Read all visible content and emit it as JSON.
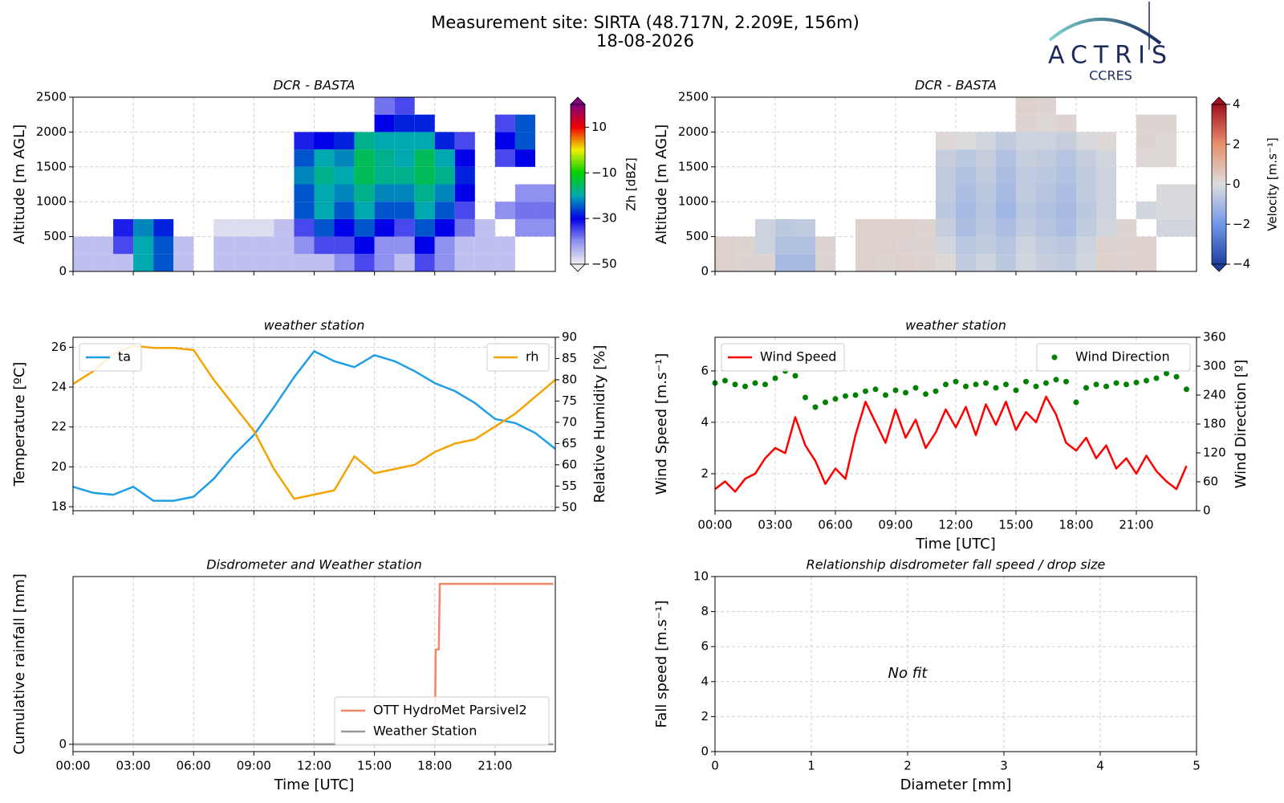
{
  "header": {
    "title": "Measurement site: SIRTA (48.717N, 2.209E, 156m)",
    "date": "18-08-2026"
  },
  "logo": {
    "name": "ACTRIS",
    "subtitle": "CCRES"
  },
  "chart_data": [
    {
      "type": "heatmap",
      "title": "DCR - BASTA",
      "ylabel": "Altitude [m AGL]",
      "x_bins": [
        0,
        1,
        2,
        3,
        4,
        5,
        6,
        7,
        8,
        9,
        10,
        11,
        12,
        13,
        14,
        15,
        16,
        17,
        18,
        19,
        20,
        21,
        22,
        23,
        24
      ],
      "y_bins": [
        0,
        250,
        500,
        750,
        1000,
        1250,
        1500,
        1750,
        2000,
        2250,
        2500
      ],
      "values": [
        [
          -45,
          -45,
          -45,
          -20,
          -25,
          -45,
          null,
          -45,
          -45,
          -45,
          -45,
          -45,
          -45,
          -40,
          -35,
          -40,
          -45,
          -35,
          -40,
          -45,
          -45,
          -45,
          null,
          null
        ],
        [
          -45,
          -45,
          -35,
          -20,
          -25,
          -45,
          null,
          -45,
          -45,
          -45,
          -45,
          -40,
          -35,
          -35,
          -30,
          -40,
          -40,
          -30,
          -40,
          -45,
          -45,
          -45,
          null,
          null
        ],
        [
          null,
          null,
          -32,
          -22,
          -28,
          null,
          null,
          -48,
          -48,
          -48,
          -45,
          -35,
          -25,
          -30,
          -25,
          -30,
          -35,
          -25,
          -30,
          -38,
          -45,
          null,
          -40,
          -40
        ],
        [
          null,
          null,
          null,
          null,
          null,
          null,
          null,
          null,
          null,
          null,
          null,
          -25,
          -20,
          -25,
          -20,
          -25,
          -25,
          -20,
          -25,
          -35,
          null,
          -40,
          -38,
          -38
        ],
        [
          null,
          null,
          null,
          null,
          null,
          null,
          null,
          null,
          null,
          null,
          null,
          -25,
          -20,
          -22,
          -18,
          -22,
          -22,
          -18,
          -22,
          -30,
          null,
          null,
          -40,
          -40
        ],
        [
          null,
          null,
          null,
          null,
          null,
          null,
          null,
          null,
          null,
          null,
          null,
          -22,
          -18,
          -20,
          -15,
          -18,
          -18,
          -15,
          -18,
          -28,
          null,
          null,
          null,
          null
        ],
        [
          null,
          null,
          null,
          null,
          null,
          null,
          null,
          null,
          null,
          null,
          null,
          -25,
          -20,
          -22,
          -15,
          -18,
          -20,
          -15,
          -20,
          -30,
          null,
          -35,
          -30,
          null
        ],
        [
          null,
          null,
          null,
          null,
          null,
          null,
          null,
          null,
          null,
          null,
          null,
          -32,
          -30,
          -28,
          -18,
          -20,
          -20,
          -20,
          -28,
          -35,
          null,
          -30,
          -25,
          null
        ],
        [
          null,
          null,
          null,
          null,
          null,
          null,
          null,
          null,
          null,
          null,
          null,
          null,
          null,
          null,
          null,
          -30,
          -28,
          -28,
          null,
          null,
          null,
          -35,
          -25,
          null
        ],
        [
          null,
          null,
          null,
          null,
          null,
          null,
          null,
          null,
          null,
          null,
          null,
          null,
          null,
          null,
          null,
          -38,
          -35,
          null,
          null,
          null,
          null,
          null,
          null,
          null
        ]
      ],
      "xlim": [
        0,
        24
      ],
      "xticks": [
        0,
        3,
        6,
        9,
        12,
        15,
        18,
        21
      ],
      "xtick_labels": false,
      "ylim": [
        0,
        2500
      ],
      "yticks": [
        0,
        500,
        1000,
        1500,
        2000,
        2500
      ],
      "grid": true,
      "colorbar": {
        "label": "Zh [dBZ]",
        "lim": [
          -50,
          20
        ],
        "ticks": [
          {
            "value": -50,
            "label": "−50"
          },
          {
            "value": -30,
            "label": "−30"
          },
          {
            "value": -10,
            "label": "−10"
          },
          10
        ],
        "colors": [
          "#f0f0f0",
          "#9090f0",
          "#0000e8",
          "#00a8b0",
          "#00d000",
          "#f0f000",
          "#f00000",
          "#800080"
        ]
      }
    },
    {
      "type": "heatmap",
      "title": "DCR - BASTA",
      "ylabel": "Altitude [m AGL]",
      "x_bins": [
        0,
        1,
        2,
        3,
        4,
        5,
        6,
        7,
        8,
        9,
        10,
        11,
        12,
        13,
        14,
        15,
        16,
        17,
        18,
        19,
        20,
        21,
        22,
        23,
        24
      ],
      "y_bins": [
        0,
        250,
        500,
        750,
        1000,
        1250,
        1500,
        1750,
        2000,
        2250,
        2500
      ],
      "values": [
        [
          0.3,
          0.2,
          0.2,
          -1,
          -1,
          0.2,
          null,
          0.3,
          0.2,
          0.3,
          0.2,
          0.1,
          -0.5,
          -0.3,
          -0.6,
          -0.2,
          -0.4,
          -0.5,
          -0.2,
          0.3,
          0.2,
          0.3,
          null,
          null
        ],
        [
          0.3,
          0.2,
          -0.3,
          -0.8,
          -0.8,
          0.2,
          null,
          0.3,
          0.3,
          0.2,
          0.2,
          -0.2,
          -0.6,
          -0.5,
          -0.7,
          -0.3,
          -0.5,
          -0.6,
          -0.3,
          0.2,
          0.2,
          0.3,
          null,
          null
        ],
        [
          null,
          null,
          -0.3,
          -0.6,
          -0.5,
          null,
          null,
          0.3,
          0.3,
          0.3,
          0.2,
          -0.4,
          -0.9,
          -0.6,
          -0.9,
          -0.5,
          -0.7,
          -0.9,
          -0.5,
          -0.2,
          0.2,
          null,
          -0.2,
          -0.2
        ],
        [
          null,
          null,
          null,
          null,
          null,
          null,
          null,
          null,
          null,
          null,
          null,
          -0.6,
          -1.0,
          -0.7,
          -1.1,
          -0.6,
          -0.8,
          -1.0,
          -0.6,
          -0.3,
          null,
          -0.2,
          -0.1,
          -0.1
        ],
        [
          null,
          null,
          null,
          null,
          null,
          null,
          null,
          null,
          null,
          null,
          null,
          -0.5,
          -0.9,
          -0.6,
          -1.0,
          -0.5,
          -0.7,
          -0.9,
          -0.5,
          -0.3,
          null,
          null,
          -0.1,
          -0.1
        ],
        [
          null,
          null,
          null,
          null,
          null,
          null,
          null,
          null,
          null,
          null,
          null,
          -0.5,
          -0.8,
          -0.5,
          -0.9,
          -0.5,
          -0.6,
          -0.8,
          -0.5,
          -0.3,
          null,
          null,
          null,
          null
        ],
        [
          null,
          null,
          null,
          null,
          null,
          null,
          null,
          null,
          null,
          null,
          null,
          -0.4,
          -0.6,
          -0.4,
          -0.8,
          -0.4,
          -0.5,
          -0.7,
          -0.4,
          -0.2,
          null,
          0.1,
          0.1,
          null
        ],
        [
          null,
          null,
          null,
          null,
          null,
          null,
          null,
          null,
          null,
          null,
          null,
          0.1,
          0,
          -0.2,
          -0.5,
          -0.3,
          -0.3,
          -0.4,
          -0.1,
          0.1,
          null,
          0.2,
          0.1,
          null
        ],
        [
          null,
          null,
          null,
          null,
          null,
          null,
          null,
          null,
          null,
          null,
          null,
          null,
          null,
          null,
          null,
          0.2,
          0.1,
          0.2,
          null,
          null,
          null,
          0.2,
          0.2,
          null
        ],
        [
          null,
          null,
          null,
          null,
          null,
          null,
          null,
          null,
          null,
          null,
          null,
          null,
          null,
          null,
          null,
          0.3,
          0.2,
          null,
          null,
          null,
          null,
          null,
          null,
          null
        ]
      ],
      "xlim": [
        0,
        24
      ],
      "xticks": [
        0,
        3,
        6,
        9,
        12,
        15,
        18,
        21
      ],
      "xtick_labels": false,
      "ylim": [
        0,
        2500
      ],
      "yticks": [
        0,
        500,
        1000,
        1500,
        2000,
        2500
      ],
      "grid": true,
      "colorbar": {
        "label": "Velocity [m.s⁻¹]",
        "lim": [
          -4,
          4
        ],
        "ticks": [
          {
            "value": -4,
            "label": "−4"
          },
          {
            "value": -2,
            "label": "−2"
          },
          0,
          2,
          4
        ],
        "colors": [
          "#2040a0",
          "#7098e8",
          "#dcdcdc",
          "#e8906c",
          "#a01020"
        ]
      }
    },
    {
      "type": "line",
      "title": "weather station",
      "ylabel": "Temperature [ºC]",
      "y2label": "Relative Humidity [%]",
      "x": [
        0,
        1,
        2,
        3,
        4,
        5,
        6,
        7,
        8,
        9,
        10,
        11,
        12,
        13,
        14,
        15,
        16,
        17,
        18,
        19,
        20,
        21,
        22,
        23,
        24
      ],
      "series": [
        {
          "name": "ta",
          "color": "#1f9ee8",
          "legend": "upper left",
          "values": [
            19.0,
            18.7,
            18.6,
            19.0,
            18.3,
            18.3,
            18.5,
            19.4,
            20.6,
            21.6,
            23.0,
            24.5,
            25.8,
            25.3,
            25.0,
            25.6,
            25.3,
            24.8,
            24.2,
            23.8,
            23.2,
            22.4,
            22.2,
            21.7,
            20.9
          ]
        },
        {
          "name": "rh",
          "color": "#f5a300",
          "legend": "upper right",
          "axis": "y2",
          "values": [
            79,
            82,
            86,
            88,
            87.5,
            87.5,
            87,
            80,
            74,
            68,
            59,
            52,
            53,
            54,
            62,
            58,
            59,
            60,
            63,
            65,
            66,
            69,
            72,
            76,
            80
          ]
        }
      ],
      "xlim": [
        0,
        24
      ],
      "xticks": [
        0,
        3,
        6,
        9,
        12,
        15,
        18,
        21
      ],
      "xtick_labels": false,
      "ylim": [
        17.8,
        26.5
      ],
      "yticks": [
        18,
        20,
        22,
        24,
        26
      ],
      "y2lim": [
        49.2,
        90
      ],
      "y2ticks": [
        50,
        55,
        60,
        65,
        70,
        75,
        80,
        85,
        90
      ],
      "grid": true
    },
    {
      "type": "line",
      "title": "weather station",
      "ylabel": "Wind Speed [m.s⁻¹]",
      "y2label": "Wind Direction [º]",
      "xlabel": "Time [UTC]",
      "x": [
        0,
        0.5,
        1,
        1.5,
        2,
        2.5,
        3,
        3.5,
        4,
        4.5,
        5,
        5.5,
        6,
        6.5,
        7,
        7.5,
        8,
        8.5,
        9,
        9.5,
        10,
        10.5,
        11,
        11.5,
        12,
        12.5,
        13,
        13.5,
        14,
        14.5,
        15,
        15.5,
        16,
        16.5,
        17,
        17.5,
        18,
        18.5,
        19,
        19.5,
        20,
        20.5,
        21,
        21.5,
        22,
        22.5,
        23,
        23.5
      ],
      "series": [
        {
          "name": "Wind Speed",
          "color": "#ff0000",
          "legend": "upper left",
          "values": [
            1.4,
            1.7,
            1.3,
            1.8,
            2.0,
            2.6,
            3.0,
            2.8,
            4.2,
            3.1,
            2.5,
            1.6,
            2.2,
            1.8,
            3.5,
            4.8,
            4.0,
            3.2,
            4.5,
            3.4,
            4.1,
            3.0,
            3.6,
            4.5,
            3.8,
            4.6,
            3.5,
            4.7,
            3.9,
            4.8,
            3.7,
            4.4,
            4.0,
            5.0,
            4.3,
            3.2,
            2.9,
            3.4,
            2.6,
            3.1,
            2.2,
            2.6,
            2.0,
            2.7,
            2.1,
            1.7,
            1.4,
            2.3
          ]
        },
        {
          "name": "Wind Direction",
          "color": "#008000",
          "legend": "upper right",
          "axis": "y2",
          "marker": "dot",
          "values": [
            265,
            270,
            262,
            258,
            265,
            262,
            275,
            290,
            280,
            235,
            215,
            225,
            232,
            238,
            240,
            248,
            252,
            240,
            250,
            245,
            255,
            242,
            248,
            262,
            268,
            258,
            262,
            265,
            255,
            262,
            250,
            268,
            258,
            265,
            272,
            268,
            225,
            255,
            262,
            258,
            265,
            262,
            266,
            270,
            275,
            285,
            278,
            252
          ]
        }
      ],
      "xlim": [
        0,
        24
      ],
      "xticks": [
        {
          "value": 0,
          "label": "00:00"
        },
        {
          "value": 3,
          "label": "03:00"
        },
        {
          "value": 6,
          "label": "06:00"
        },
        {
          "value": 9,
          "label": "09:00"
        },
        {
          "value": 12,
          "label": "12:00"
        },
        {
          "value": 15,
          "label": "15:00"
        },
        {
          "value": 18,
          "label": "18:00"
        },
        {
          "value": 21,
          "label": "21:00"
        }
      ],
      "ylim": [
        0.56,
        7.31
      ],
      "yticks": [
        2,
        4,
        6
      ],
      "y2lim": [
        0,
        360
      ],
      "y2ticks": [
        0,
        60,
        120,
        180,
        240,
        300,
        360
      ],
      "grid": true
    },
    {
      "type": "line",
      "title": "Disdrometer and Weather station",
      "ylabel": "Cumulative rainfall [mm]",
      "xlabel": "Time [UTC]",
      "series": [
        {
          "name": "OTT HydroMet Parsivel2",
          "color": "#ee8866",
          "legend": "lower right",
          "x": [
            0,
            18.0,
            18.05,
            18.2,
            18.25,
            23.9
          ],
          "values": [
            0,
            0,
            2.6,
            2.6,
            4.4,
            4.4
          ]
        },
        {
          "name": "Weather Station",
          "color": "#999999",
          "legend": "lower right",
          "x": [
            0,
            23.9
          ],
          "values": [
            0,
            0
          ]
        }
      ],
      "xlim": [
        0,
        24
      ],
      "xticks": [
        {
          "value": 0,
          "label": "00:00"
        },
        {
          "value": 3,
          "label": "03:00"
        },
        {
          "value": 6,
          "label": "06:00"
        },
        {
          "value": 9,
          "label": "09:00"
        },
        {
          "value": 12,
          "label": "12:00"
        },
        {
          "value": 15,
          "label": "15:00"
        },
        {
          "value": 18,
          "label": "18:00"
        },
        {
          "value": 21,
          "label": "21:00"
        }
      ],
      "ylim": [
        -0.2,
        4.6
      ],
      "yticks": [
        0
      ],
      "grid": true
    },
    {
      "type": "scatter",
      "title": "Relationship disdrometer fall speed / drop size",
      "ylabel": "Fall speed [m.s⁻¹]",
      "xlabel": "Diameter [mm]",
      "annotation": "No fit",
      "xlim": [
        0,
        5
      ],
      "xticks": [
        0,
        1,
        2,
        3,
        4,
        5
      ],
      "ylim": [
        0,
        10
      ],
      "yticks": [
        0,
        2,
        4,
        6,
        8,
        10
      ],
      "grid": true
    }
  ]
}
